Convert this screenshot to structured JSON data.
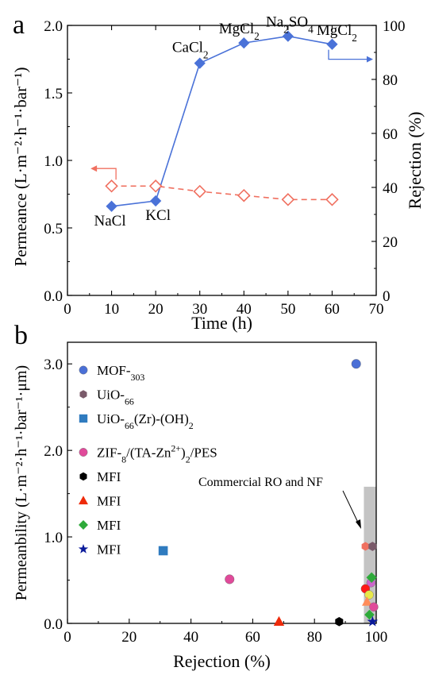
{
  "panels": [
    {
      "letter": "a",
      "chart_data": {
        "type": "line",
        "xlabel": "Time (h)",
        "ylabel_left": "Permeance (L·m⁻²·h⁻¹·bar⁻¹)",
        "ylabel_right": "Rejection (%)",
        "xlim": [
          0,
          70
        ],
        "ylim_left": [
          0.0,
          2.0
        ],
        "ylim_right": [
          0,
          100
        ],
        "x_ticks": [
          "0",
          "10",
          "20",
          "30",
          "40",
          "50",
          "60",
          "70"
        ],
        "y_left_ticks": [
          "0.0",
          "0.5",
          "1.0",
          "1.5",
          "2.0"
        ],
        "y_right_ticks": [
          "0",
          "20",
          "40",
          "60",
          "80",
          "100"
        ],
        "series": [
          {
            "axis": "right",
            "color": "#4a72d8",
            "marker": "diamond-filled",
            "line": "solid",
            "x": [
              10,
              20,
              30,
              40,
              50,
              60
            ],
            "values": [
              33,
              35,
              86,
              93.5,
              96,
              93
            ],
            "point_labels": [
              "NaCl",
              "KCl",
              "CaCl2",
              "MgCl2",
              "Na2SO4",
              "MgCl2"
            ]
          },
          {
            "axis": "left",
            "color": "#f07060",
            "marker": "diamond-open",
            "line": "dashed",
            "x": [
              10,
              20,
              30,
              40,
              50,
              60
            ],
            "values": [
              0.81,
              0.81,
              0.77,
              0.74,
              0.71,
              0.71
            ]
          }
        ]
      }
    },
    {
      "letter": "b",
      "chart_data": {
        "type": "scatter",
        "xlabel": "Rejection (%)",
        "ylabel": "Permeanbility (L·m⁻²·h⁻¹·bar⁻¹·μm)",
        "xlim": [
          0,
          100
        ],
        "ylim": [
          0.0,
          3.25
        ],
        "x_ticks": [
          "0",
          "20",
          "40",
          "60",
          "80",
          "100"
        ],
        "y_ticks": [
          "0.0",
          "1.0",
          "2.0",
          "3.0"
        ],
        "annotation": "Commercial RO and NF",
        "commercial_region": {
          "x": [
            96,
            100
          ],
          "y": [
            0,
            1.58
          ]
        },
        "series": [
          {
            "name": "MOF-303",
            "color": "#4a6fd6",
            "marker": "circle",
            "x": [
              93.5
            ],
            "y": [
              3.0
            ]
          },
          {
            "name": "UiO-66",
            "color": "#7a5a6a",
            "marker": "hexagon",
            "x": [
              98.8
            ],
            "y": [
              0.89
            ]
          },
          {
            "name": "UiO-66(Zr)-(OH)2",
            "color": "#2f7bbf",
            "marker": "square",
            "x": [
              31
            ],
            "y": [
              0.84
            ]
          },
          {
            "name": "ZIF-8/(TA-Zn2+)2/PES",
            "color": "#e04a9a",
            "marker": "circle",
            "x": [
              52.5
            ],
            "y": [
              0.51
            ]
          },
          {
            "name": "MFI",
            "color": "#000000",
            "marker": "hexagon",
            "x": [
              88
            ],
            "y": [
              0.02
            ]
          },
          {
            "name": "MFI",
            "color": "#ee2a0a",
            "marker": "triangle",
            "x": [
              68.5
            ],
            "y": [
              0.02
            ]
          },
          {
            "name": "MFI",
            "color": "#2eaa3a",
            "marker": "diamond",
            "x": [
              98.5
            ],
            "y": [
              0.53
            ]
          },
          {
            "name": "MFI",
            "color": "#0a1a9a",
            "marker": "star",
            "x": [
              98.8
            ],
            "y": [
              0.02
            ]
          }
        ],
        "extra_points": [
          {
            "color": "#f07060",
            "marker": "hexagon",
            "x": 96.5,
            "y": 0.89
          },
          {
            "color": "#cc66cc",
            "marker": "circle",
            "x": 98.3,
            "y": 0.47
          },
          {
            "color": "#ff1818",
            "marker": "circle",
            "x": 96.5,
            "y": 0.4
          },
          {
            "color": "#e8e84a",
            "marker": "circle",
            "x": 97.7,
            "y": 0.33
          },
          {
            "color": "#ff8c5a",
            "marker": "triangle",
            "x": 97.0,
            "y": 0.25
          },
          {
            "color": "#e04a9a",
            "marker": "circle",
            "x": 99.2,
            "y": 0.19
          },
          {
            "color": "#2eaa3a",
            "marker": "diamond",
            "x": 97.8,
            "y": 0.1
          }
        ]
      }
    }
  ]
}
